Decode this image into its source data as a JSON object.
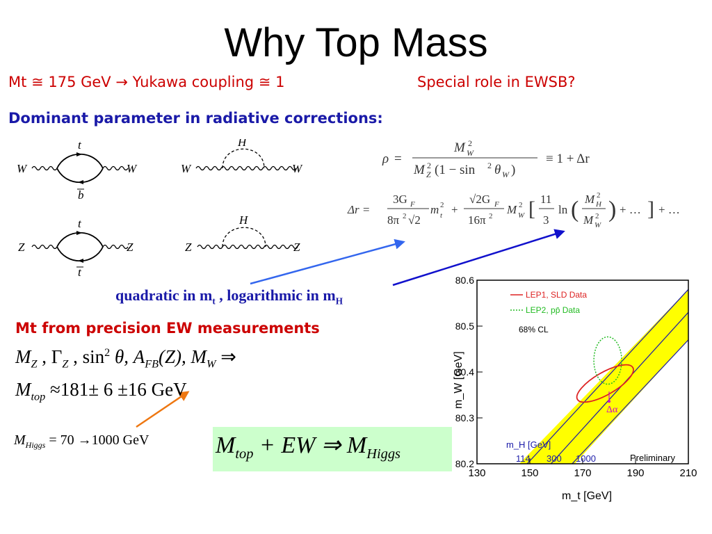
{
  "slide": {
    "title": "Why Top Mass",
    "line1": {
      "mt": "Mt",
      "approx1": "≅",
      "value": "175 GeV",
      "arrow": "→",
      "coupling": "Yukawa coupling",
      "approx2": "≅",
      "one": "1"
    },
    "line1_right": "Special role in EWSB?",
    "line2": "Dominant parameter in radiative corrections:",
    "quadratic": {
      "part1": "quadratic in m",
      "sub_t": "t",
      "part2": " , logarithmic in m",
      "sub_h": "H"
    },
    "mt_from": "Mt from precision EW measurements",
    "eq_measurements": {
      "M": "M",
      "Z": "Z",
      "comma": " , ",
      "Gamma": "Γ",
      "sin": "sin",
      "two": "2",
      "theta": " θ, ",
      "A": "A",
      "FB": "FB",
      "Zarg": "(Z), ",
      "W": "W",
      "implies": " ⇒"
    },
    "eq_mtop": {
      "M": "M",
      "sub": "top",
      "rest": " ≈181± 6 ±16 GeV"
    },
    "eq_mhiggs": {
      "M": "M",
      "sub": "Higgs",
      "rest": " = 70 →1000 GeV"
    },
    "boxed_eq": {
      "M1": "M",
      "sub1": "top",
      "mid": " + EW ⇒ ",
      "M2": "M",
      "sub2": "Higgs"
    },
    "feynman_labels": {
      "t": "t",
      "b": "b",
      "tbar": "t",
      "H": "H",
      "W": "W",
      "Z": "Z"
    },
    "formula_rho": {
      "rho": "ρ",
      "eq": "=",
      "num": "M",
      "num_sub": "W",
      "num_sup": "2",
      "den1": "M",
      "den1_sub": "Z",
      "den1_sup": "2",
      "den2": "(1 − sin",
      "den2_sup": "2",
      "den3": "θ",
      "den3_sub": "W",
      "den4": ")",
      "rest": "≡ 1 + Δr"
    },
    "formula_dr": {
      "lhs": "Δr =",
      "f1_num": "3G",
      "f1_num_sub": "F",
      "f1_den": "8π",
      "f1_den_sup": "2",
      "f1_den2": "√2",
      "m1": "m",
      "m1_sub": "t",
      "m1_sup": "2",
      "plus1": "+",
      "f2_num": "√2G",
      "f2_num_sub": "F",
      "f2_den": "16π",
      "f2_den_sup": "2",
      "m2": "M",
      "m2_sub": "W",
      "m2_sup": "2",
      "f3_num": "11",
      "f3_den": "3",
      "ln": "ln",
      "f4_num": "M",
      "f4_num_sub": "H",
      "f4_num_sup": "2",
      "f4_den": "M",
      "f4_den_sub": "W",
      "f4_den_sup": "2",
      "dots1": "+ …",
      "dots2": "+ …"
    }
  },
  "chart_data": {
    "type": "area",
    "xlabel": "m_t  [GeV]",
    "ylabel": "m_W  [GeV]",
    "xlim": [
      130,
      210
    ],
    "ylim": [
      80.2,
      80.6
    ],
    "xticks": [
      "130",
      "150",
      "170",
      "190",
      "210"
    ],
    "yticks": [
      "80.2",
      "80.3",
      "80.4",
      "80.5",
      "80.6"
    ],
    "legend": [
      {
        "label": "LEP1, SLD Data",
        "color": "#dd2222",
        "style": "solid"
      },
      {
        "label": "LEP2, pp̄ Data",
        "color": "#22bb22",
        "style": "dotted"
      },
      {
        "label": "68% CL",
        "color": "#000000",
        "style": "none"
      }
    ],
    "band": {
      "color": "#ffff00",
      "lower": [
        [
          146,
          80.2
        ],
        [
          210,
          80.58
        ]
      ],
      "upper": [
        [
          167,
          80.2
        ],
        [
          210,
          80.47
        ]
      ]
    },
    "higgs_lines": [
      {
        "label": "114",
        "points": [
          [
            149,
            80.2
          ],
          [
            210,
            80.58
          ]
        ]
      },
      {
        "label": "300",
        "points": [
          [
            158,
            80.2
          ],
          [
            210,
            80.53
          ]
        ]
      },
      {
        "label": "1000",
        "points": [
          [
            166,
            80.2
          ],
          [
            210,
            80.47
          ]
        ]
      }
    ],
    "higgs_label": "m_H [GeV]",
    "higgs_values": [
      "114",
      "300",
      "1000"
    ],
    "ellipse_lep1": {
      "center": [
        178.5,
        80.375
      ],
      "color": "#dd2222"
    },
    "ellipse_lep2": {
      "center": [
        179.5,
        80.425
      ],
      "color": "#22bb22"
    },
    "delta_alpha": {
      "label": "Δα",
      "at": [
        180,
        80.33
      ],
      "color": "#cc00cc"
    },
    "annotation": "Preliminary"
  },
  "colors": {
    "title": "#000000",
    "red_text": "#cc0000",
    "blue_text": "#1a1aa8",
    "box_bg": "#ccffcc",
    "arrow_blue": "#3366ee",
    "arrow_darkblue": "#1111cc",
    "arrow_orange": "#ee7711"
  }
}
